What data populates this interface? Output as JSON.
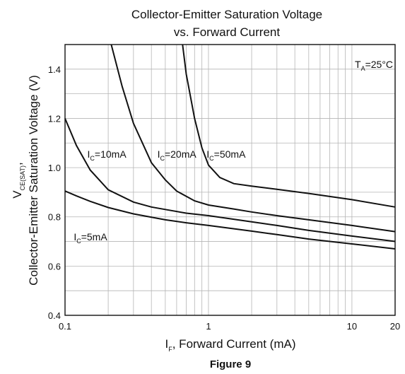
{
  "chart_data": {
    "type": "line",
    "title_line1": "Collector-Emitter Saturation Voltage",
    "title_line2": "vs. Forward Current",
    "xlabel": {
      "main": "I",
      "sub": "F",
      "rest": ", Forward Current (mA)"
    },
    "ylabel": {
      "main": "V",
      "sub": "CE(SAT)",
      "rest": ",",
      "line2": "Collector-Emitter Saturation Voltage (V)"
    },
    "xscale": "log",
    "xlim": [
      0.1,
      20
    ],
    "ylim": [
      0.4,
      1.5
    ],
    "grid": true,
    "x_ticks": [
      {
        "value": 0.1,
        "label": "0.1"
      },
      {
        "value": 1,
        "label": "1"
      },
      {
        "value": 10,
        "label": "10"
      },
      {
        "value": 20,
        "label": "20"
      }
    ],
    "y_ticks": [
      {
        "value": 0.4,
        "label": "0.4"
      },
      {
        "value": 0.6,
        "label": "0.6"
      },
      {
        "value": 0.8,
        "label": "0.8"
      },
      {
        "value": 1.0,
        "label": "1.0"
      },
      {
        "value": 1.2,
        "label": "1.2"
      },
      {
        "value": 1.4,
        "label": "1.4"
      }
    ],
    "annotation": {
      "main": "T",
      "sub": "A",
      "rest": "=25°C"
    },
    "series": [
      {
        "name": "I_C=5mA",
        "label": {
          "main": "I",
          "sub": "C",
          "rest": "=5mA",
          "x": 0.115,
          "y": 0.705
        },
        "x": [
          0.1,
          0.12,
          0.15,
          0.2,
          0.3,
          0.5,
          0.7,
          1,
          2,
          3,
          5,
          10,
          20
        ],
        "y": [
          0.905,
          0.885,
          0.863,
          0.838,
          0.812,
          0.788,
          0.776,
          0.765,
          0.742,
          0.728,
          0.71,
          0.69,
          0.67
        ]
      },
      {
        "name": "I_C=10mA",
        "label": {
          "main": "I",
          "sub": "C",
          "rest": "=10mA",
          "x": 0.143,
          "y": 1.04
        },
        "x": [
          0.1,
          0.12,
          0.15,
          0.2,
          0.3,
          0.4,
          0.5,
          0.7,
          1,
          2,
          3,
          5,
          10,
          20
        ],
        "y": [
          1.2,
          1.09,
          0.99,
          0.91,
          0.86,
          0.84,
          0.83,
          0.815,
          0.805,
          0.78,
          0.765,
          0.745,
          0.722,
          0.7
        ]
      },
      {
        "name": "I_C=20mA",
        "label": {
          "main": "I",
          "sub": "C",
          "rest": "=20mA",
          "x": 0.44,
          "y": 1.04
        },
        "x": [
          0.21,
          0.25,
          0.3,
          0.4,
          0.5,
          0.6,
          0.8,
          1,
          1.5,
          2,
          3,
          5,
          10,
          20
        ],
        "y": [
          1.5,
          1.33,
          1.18,
          1.02,
          0.95,
          0.905,
          0.865,
          0.848,
          0.832,
          0.82,
          0.805,
          0.788,
          0.765,
          0.74
        ]
      },
      {
        "name": "I_C=50mA",
        "label": {
          "main": "I",
          "sub": "C",
          "rest": "=50mA",
          "x": 0.97,
          "y": 1.04
        },
        "x": [
          0.66,
          0.7,
          0.8,
          0.9,
          1,
          1.2,
          1.5,
          2,
          3,
          5,
          10,
          20
        ],
        "y": [
          1.5,
          1.38,
          1.2,
          1.08,
          1.01,
          0.96,
          0.935,
          0.925,
          0.912,
          0.895,
          0.87,
          0.84
        ]
      }
    ]
  },
  "caption": "Figure 9"
}
